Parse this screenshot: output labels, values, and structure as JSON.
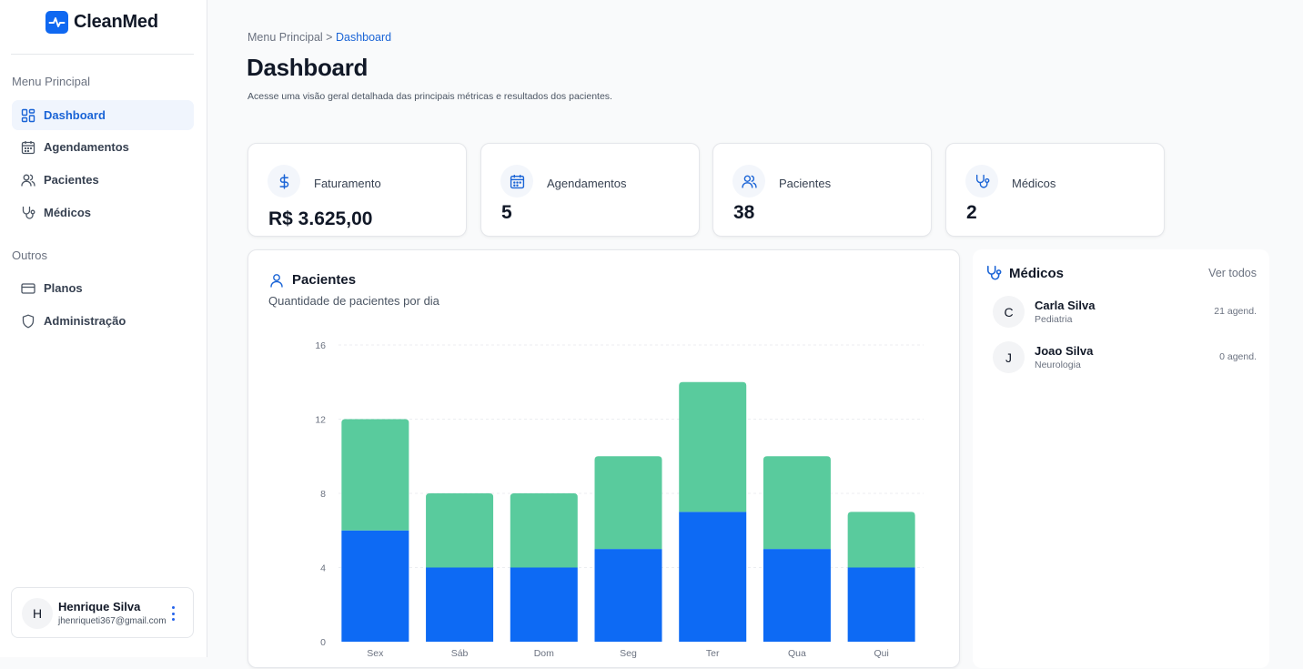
{
  "app": {
    "name": "CleanMed"
  },
  "sidebar": {
    "section_main": "Menu Principal",
    "section_other": "Outros",
    "items": [
      {
        "label": "Dashboard",
        "icon": "dashboard-grid-icon",
        "active": true
      },
      {
        "label": "Agendamentos",
        "icon": "calendar-icon"
      },
      {
        "label": "Pacientes",
        "icon": "users-icon"
      },
      {
        "label": "Médicos",
        "icon": "stethoscope-icon"
      }
    ],
    "other_items": [
      {
        "label": "Planos",
        "icon": "credit-card-icon"
      },
      {
        "label": "Administração",
        "icon": "shield-icon"
      }
    ],
    "user": {
      "initial": "H",
      "name": "Henrique Silva",
      "email": "jhenriqueti367@gmail.com"
    }
  },
  "header": {
    "breadcrumb_root": "Menu Principal",
    "breadcrumb_sep": ">",
    "breadcrumb_current": "Dashboard",
    "title": "Dashboard",
    "subtitle": "Acesse uma visão geral detalhada das principais métricas e resultados dos pacientes."
  },
  "stats": [
    {
      "label": "Faturamento",
      "value": "R$ 3.625,00",
      "icon": "dollar-icon"
    },
    {
      "label": "Agendamentos",
      "value": "5",
      "icon": "calendar-icon"
    },
    {
      "label": "Pacientes",
      "value": "38",
      "icon": "users-icon"
    },
    {
      "label": "Médicos",
      "value": "2",
      "icon": "stethoscope-icon"
    }
  ],
  "patients_chart": {
    "title": "Pacientes",
    "subtitle": "Quantidade de pacientes por dia"
  },
  "chart_data": {
    "type": "bar",
    "stacked": true,
    "title": "Pacientes",
    "subtitle": "Quantidade de pacientes por dia",
    "categories": [
      "Sex",
      "Sáb",
      "Dom",
      "Seg",
      "Ter",
      "Qua",
      "Qui"
    ],
    "series": [
      {
        "values": [
          6,
          4,
          4,
          5,
          7,
          5,
          4
        ],
        "color": "#0d6af4"
      },
      {
        "values": [
          6,
          4,
          4,
          5,
          7,
          5,
          3
        ],
        "color": "#59cb9d"
      }
    ],
    "yticks": [
      "0",
      "4",
      "8",
      "12",
      "16"
    ],
    "ylim": [
      0,
      16
    ],
    "grid": true
  },
  "doctors": {
    "title": "Médicos",
    "see_all": "Ver todos",
    "items": [
      {
        "initial": "C",
        "name": "Carla Silva",
        "specialty": "Pediatria",
        "count": "21 agend."
      },
      {
        "initial": "J",
        "name": "Joao Silva",
        "specialty": "Neurologia",
        "count": "0 agend."
      }
    ]
  },
  "colors": {
    "accent": "#1a64d6",
    "brand": "#0f68f1",
    "bar_primary": "#0d6af4",
    "bar_secondary": "#59cb9d"
  }
}
